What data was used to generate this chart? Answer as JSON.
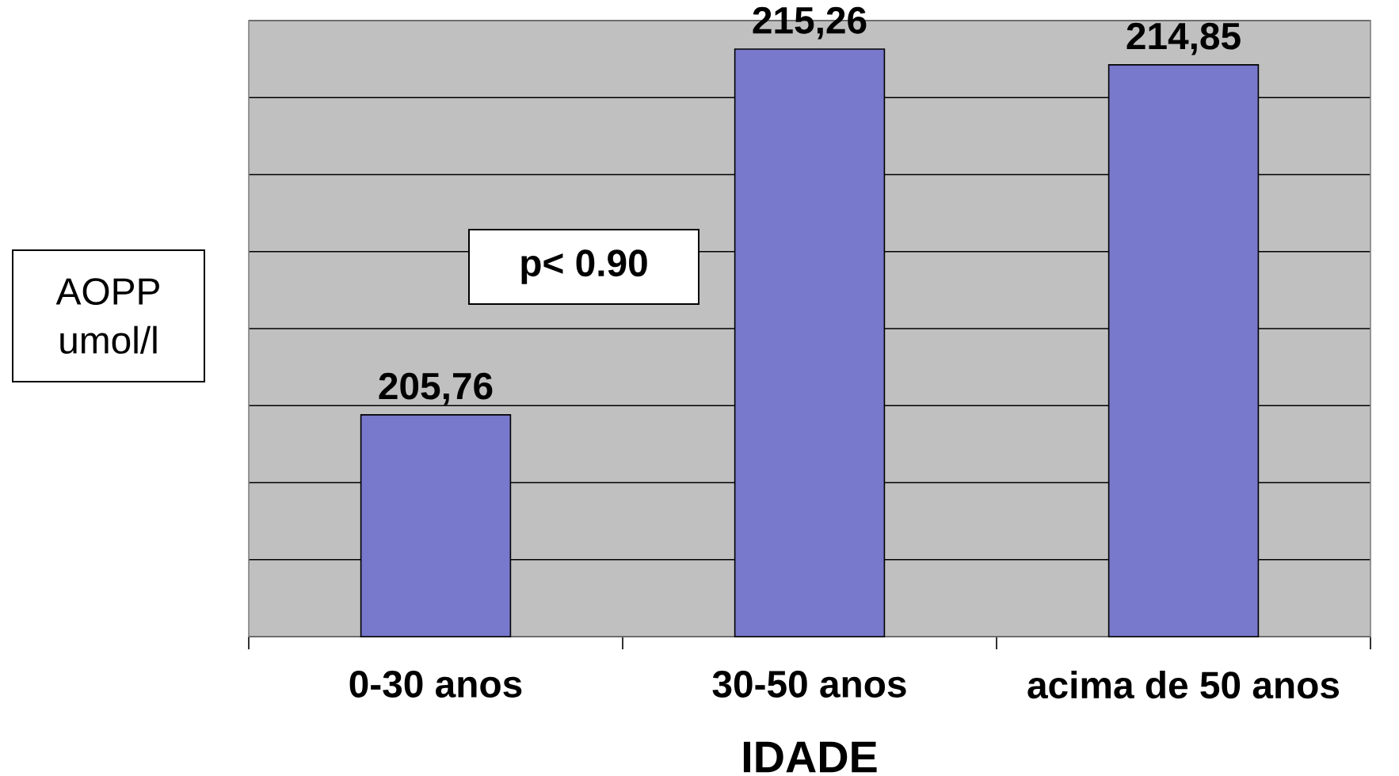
{
  "chart_data": {
    "type": "bar",
    "xlabel": "IDADE",
    "ylabel": "AOPP umol/l",
    "categories": [
      "0-30 anos",
      "30-50 anos",
      "acima de 50 anos"
    ],
    "values": [
      205.76,
      215.26,
      214.85
    ],
    "color": "#7878cc",
    "value_labels": [
      "205,76",
      "215,26",
      "214,85"
    ],
    "ylim": [
      200,
      216
    ],
    "yticks": [
      {
        "value": 200,
        "label": null
      },
      {
        "value": 202,
        "label": null
      },
      {
        "value": 204,
        "label": null
      },
      {
        "value": 206,
        "label": null
      },
      {
        "value": 208,
        "label": null
      },
      {
        "value": 210,
        "label": null
      },
      {
        "value": 212,
        "label": null
      },
      {
        "value": 214,
        "label": null
      },
      {
        "value": 216,
        "label": null
      }
    ],
    "grid": "y",
    "tick_labels": "x",
    "annotations": [
      "p< 0.90"
    ]
  }
}
